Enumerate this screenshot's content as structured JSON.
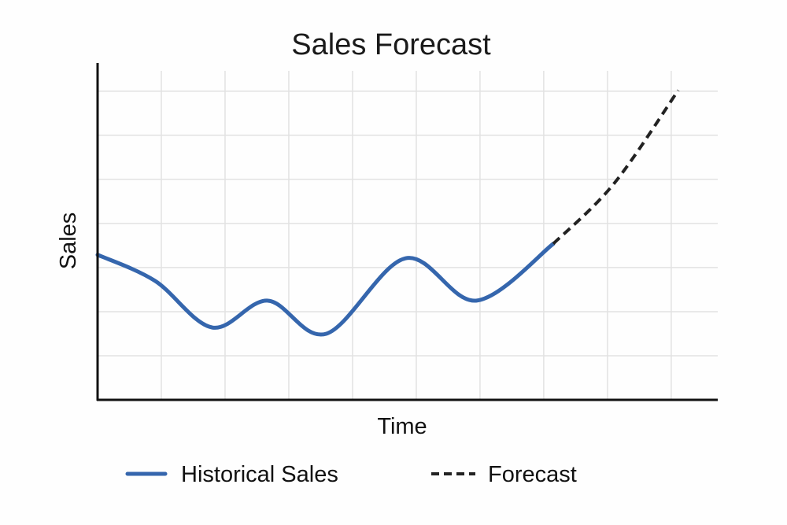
{
  "chart_data": {
    "type": "line",
    "title": "Sales Forecast",
    "xlabel": "Time",
    "ylabel": "Sales",
    "xlim": [
      0,
      9.73
    ],
    "ylim": [
      0,
      7.64
    ],
    "grid": true,
    "tick_labels_shown": false,
    "legend_position": "bottom",
    "series": [
      {
        "name": "Historical Sales",
        "style": "solid",
        "color": "#3566ad",
        "x": [
          0,
          0.9,
          1.8,
          2.67,
          3.59,
          4.83,
          5.94,
          7.15
        ],
        "y": [
          3.29,
          2.7,
          1.64,
          2.25,
          1.5,
          3.21,
          2.25,
          3.54
        ]
      },
      {
        "name": "Forecast",
        "style": "dashed",
        "color": "#222222",
        "x": [
          7.15,
          8.1,
          9.11
        ],
        "y": [
          3.54,
          4.9,
          7.02
        ]
      }
    ]
  }
}
